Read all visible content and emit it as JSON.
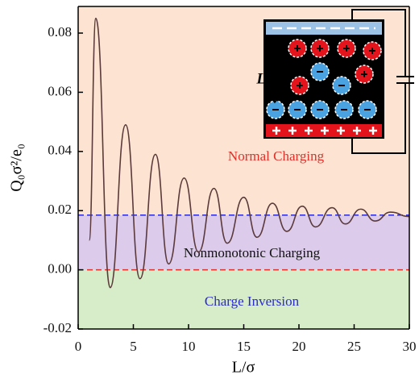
{
  "chart_data": {
    "type": "line",
    "x_label": "L/σ",
    "y_label": "Q₀σ²/e₀",
    "inset_label": "L",
    "xlim": [
      0,
      30
    ],
    "xticks": [
      0,
      5,
      10,
      15,
      20,
      25,
      30
    ],
    "ylim": [
      -0.02,
      0.089
    ],
    "yticks": [
      -0.02,
      {
        "value": 0,
        "label": "0.00"
      },
      0.02,
      0.04,
      0.06,
      0.08
    ],
    "thresholds": [
      {
        "value": 0.0185,
        "color": "#2a2ad0"
      },
      {
        "value": 0,
        "color": "#e0302a"
      }
    ],
    "bands": [
      {
        "label": "Normal Charging",
        "label_color": "#e0302a",
        "fill": "#fde4d2"
      },
      {
        "label": "Nonmonotonic Charging",
        "label_color": "#111111",
        "fill": "#dccbeb"
      },
      {
        "label": "Charge Inversion",
        "label_color": "#2a2ad0",
        "fill": "#d7ecc8"
      }
    ],
    "series": [
      {
        "color": "#5a3a3a",
        "x": [
          1,
          1.6,
          2.9,
          4.3,
          5.6,
          7.0,
          8.2,
          9.6,
          10.9,
          12.3,
          13.5,
          15.0,
          16.2,
          17.6,
          18.9,
          20.3,
          21.5,
          23.0,
          24.2,
          25.6,
          26.9,
          28.3,
          30
        ],
        "values": [
          0.01,
          0.085,
          -0.006,
          0.049,
          -0.003,
          0.039,
          0.002,
          0.031,
          0.006,
          0.0275,
          0.009,
          0.0245,
          0.011,
          0.0225,
          0.013,
          0.0215,
          0.0145,
          0.021,
          0.0155,
          0.0205,
          0.0165,
          0.0195,
          0.018
        ]
      }
    ]
  }
}
